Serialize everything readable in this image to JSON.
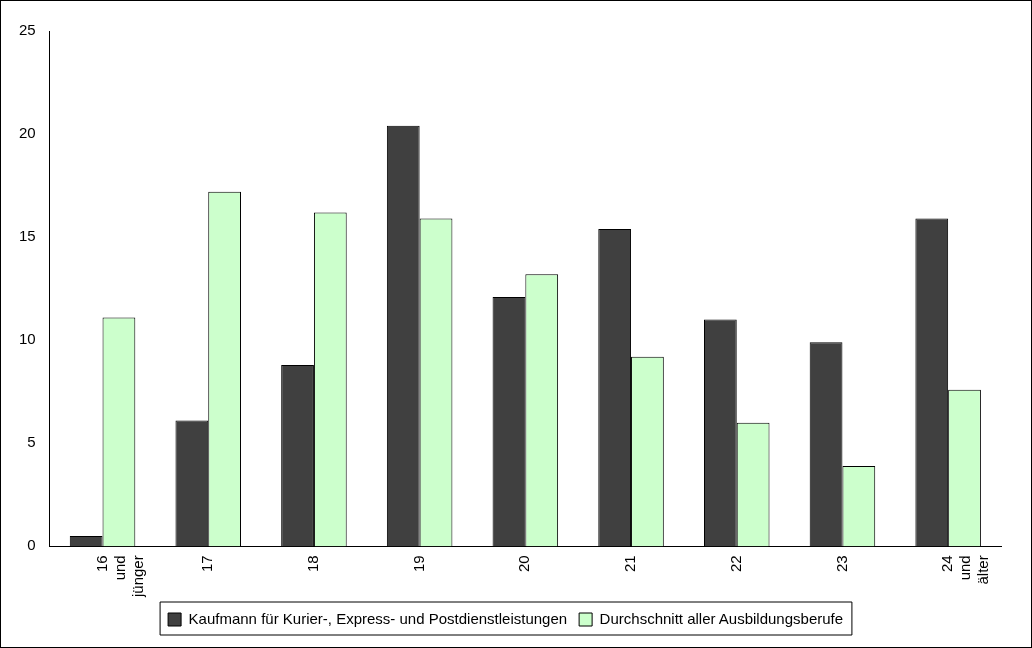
{
  "chart_data": {
    "type": "bar",
    "categories": [
      "16 und jünger",
      "17",
      "18",
      "19",
      "20",
      "21",
      "22",
      "23",
      "24 und älter"
    ],
    "series": [
      {
        "name": "Kaufmann für Kurier-, Express- und Postdienstleistungen",
        "color": "#404040",
        "values": [
          0.5,
          6.1,
          8.8,
          20.4,
          12.1,
          15.4,
          11.0,
          9.9,
          15.9
        ]
      },
      {
        "name": "Durchschnitt aller Ausbildungsberufe",
        "color": "#ccffcc",
        "values": [
          11.1,
          17.2,
          16.2,
          15.9,
          13.2,
          9.2,
          6.0,
          3.9,
          7.6
        ]
      }
    ],
    "ylim": [
      0,
      25
    ],
    "yticks": [
      0,
      5,
      10,
      15,
      20,
      25
    ],
    "grid": false,
    "legend": "bottom"
  }
}
